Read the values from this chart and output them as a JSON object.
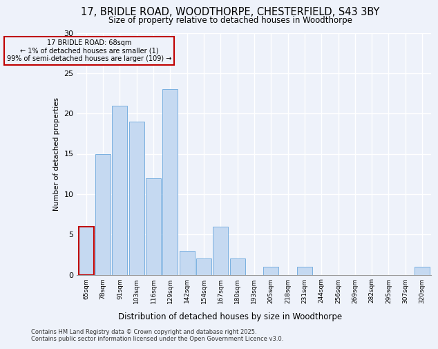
{
  "title_line1": "17, BRIDLE ROAD, WOODTHORPE, CHESTERFIELD, S43 3BY",
  "title_line2": "Size of property relative to detached houses in Woodthorpe",
  "xlabel": "Distribution of detached houses by size in Woodthorpe",
  "ylabel": "Number of detached properties",
  "footer_line1": "Contains HM Land Registry data © Crown copyright and database right 2025.",
  "footer_line2": "Contains public sector information licensed under the Open Government Licence v3.0.",
  "annotation_title": "17 BRIDLE ROAD: 68sqm",
  "annotation_line1": "← 1% of detached houses are smaller (1)",
  "annotation_line2": "99% of semi-detached houses are larger (109) →",
  "bar_labels": [
    "65sqm",
    "78sqm",
    "91sqm",
    "103sqm",
    "116sqm",
    "129sqm",
    "142sqm",
    "154sqm",
    "167sqm",
    "180sqm",
    "193sqm",
    "205sqm",
    "218sqm",
    "231sqm",
    "244sqm",
    "256sqm",
    "269sqm",
    "282sqm",
    "295sqm",
    "307sqm",
    "320sqm"
  ],
  "bar_values": [
    6,
    15,
    21,
    19,
    12,
    23,
    3,
    2,
    6,
    2,
    0,
    1,
    0,
    1,
    0,
    0,
    0,
    0,
    0,
    0,
    1
  ],
  "highlight_index": 0,
  "bar_color": "#c5d9f1",
  "bar_edge_color": "#7ab0e0",
  "highlight_bar_edge_color": "#c00000",
  "annotation_box_edge_color": "#c00000",
  "background_color": "#eef2fa",
  "grid_color": "#ffffff",
  "ylim": [
    0,
    30
  ],
  "yticks": [
    0,
    5,
    10,
    15,
    20,
    25,
    30
  ]
}
